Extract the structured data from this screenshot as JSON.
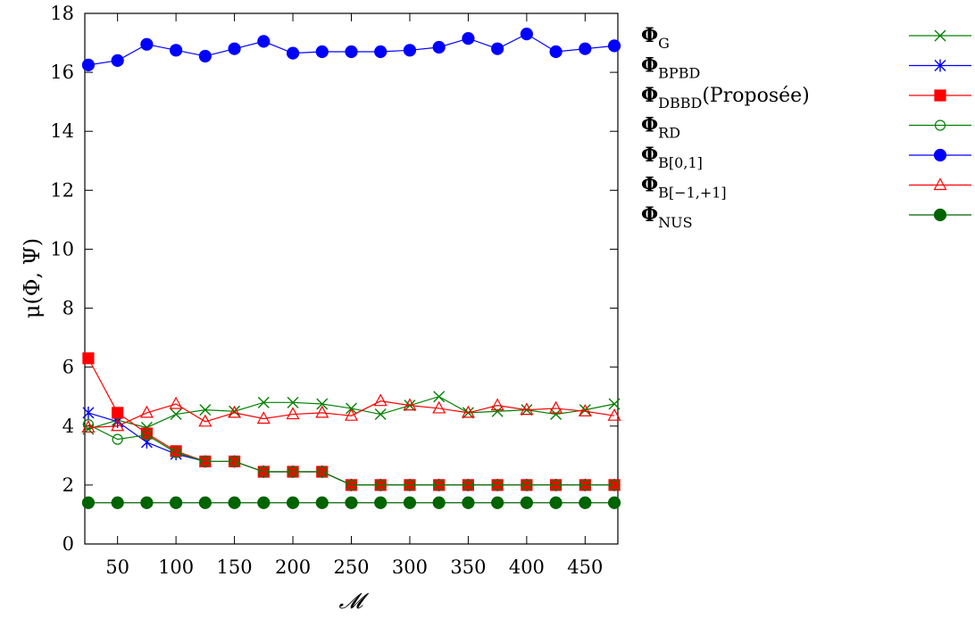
{
  "chart_data": {
    "type": "line",
    "xlabel": "𝓜",
    "ylabel": "μ(Φ, Ψ)",
    "xlim": [
      22,
      478
    ],
    "ylim": [
      0,
      18
    ],
    "xticks": [
      50,
      100,
      150,
      200,
      250,
      300,
      350,
      400,
      450
    ],
    "yticks": [
      0,
      2,
      4,
      6,
      8,
      10,
      12,
      14,
      16,
      18
    ],
    "grid": false,
    "legend_position": "outside-right",
    "x": [
      25,
      50,
      75,
      100,
      125,
      150,
      175,
      200,
      225,
      250,
      275,
      300,
      325,
      350,
      375,
      400,
      425,
      450,
      475
    ],
    "series": [
      {
        "name": "ΦG",
        "base": "Φ",
        "sub": "G",
        "suffix": "",
        "color": "#008000",
        "marker": "cross",
        "filled": false,
        "values": [
          3.9,
          4.2,
          3.95,
          4.4,
          4.55,
          4.5,
          4.8,
          4.8,
          4.75,
          4.6,
          4.4,
          4.7,
          5.0,
          4.45,
          4.5,
          4.55,
          4.4,
          4.55,
          4.75
        ]
      },
      {
        "name": "ΦBPBD",
        "base": "Φ",
        "sub": "BPBD",
        "suffix": "",
        "color": "#0000ff",
        "marker": "star",
        "filled": false,
        "values": [
          4.45,
          4.15,
          3.45,
          3.05,
          2.8,
          2.8,
          2.45,
          2.45,
          2.45,
          2.0,
          2.0,
          2.0,
          2.0,
          2.0,
          2.0,
          2.0,
          2.0,
          2.0,
          2.0
        ]
      },
      {
        "name": "ΦDBBD(Proposée)",
        "base": "Φ",
        "sub": "DBBD",
        "suffix": "(Proposée)",
        "color": "#ff0000",
        "marker": "square",
        "filled": true,
        "values": [
          6.3,
          4.45,
          3.75,
          3.15,
          2.8,
          2.8,
          2.45,
          2.45,
          2.45,
          2.0,
          2.0,
          2.0,
          2.0,
          2.0,
          2.0,
          2.0,
          2.0,
          2.0,
          2.0
        ]
      },
      {
        "name": "ΦRD",
        "base": "Φ",
        "sub": "RD",
        "suffix": "",
        "color": "#008000",
        "marker": "circle",
        "filled": false,
        "values": [
          4.05,
          3.55,
          3.7,
          3.1,
          2.8,
          2.8,
          2.45,
          2.45,
          2.45,
          2.0,
          2.0,
          2.0,
          2.0,
          2.0,
          2.0,
          2.0,
          2.0,
          2.0,
          2.0
        ]
      },
      {
        "name": "ΦB[0,1]",
        "base": "Φ",
        "sub": "B[0,1]",
        "suffix": "",
        "color": "#0000ff",
        "marker": "circle",
        "filled": true,
        "values": [
          16.25,
          16.4,
          16.95,
          16.75,
          16.55,
          16.8,
          17.05,
          16.65,
          16.7,
          16.7,
          16.7,
          16.75,
          16.85,
          17.15,
          16.8,
          17.3,
          16.7,
          16.8,
          16.9
        ]
      },
      {
        "name": "ΦB[−1,+1]",
        "base": "Φ",
        "sub": "B[−1,+1]",
        "suffix": "",
        "color": "#ff0000",
        "marker": "triangle",
        "filled": false,
        "values": [
          3.95,
          4.0,
          4.45,
          4.75,
          4.15,
          4.45,
          4.25,
          4.4,
          4.45,
          4.35,
          4.85,
          4.7,
          4.6,
          4.45,
          4.7,
          4.55,
          4.6,
          4.5,
          4.35
        ]
      },
      {
        "name": "ΦNUS",
        "base": "Φ",
        "sub": "NUS",
        "suffix": "",
        "color": "#006400",
        "marker": "circle",
        "filled": true,
        "values": [
          1.4,
          1.4,
          1.4,
          1.4,
          1.4,
          1.4,
          1.4,
          1.4,
          1.4,
          1.4,
          1.4,
          1.4,
          1.4,
          1.4,
          1.4,
          1.4,
          1.4,
          1.4,
          1.4
        ]
      }
    ]
  }
}
